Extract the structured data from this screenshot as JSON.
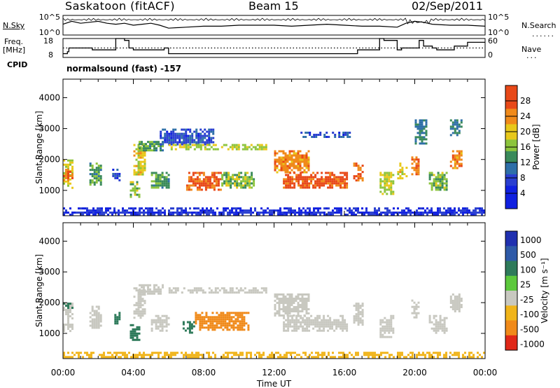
{
  "header": {
    "station": "Saskatoon (fitACF)",
    "beam": "Beam 15",
    "date": "02/Sep/2011"
  },
  "left_labels": {
    "nsky": "N.Sky",
    "freq_line1": "Freq.",
    "freq_line2": "[MHz]",
    "cpid": "CPID"
  },
  "right_labels": {
    "nsearch": "N.Search",
    "nave": "Nave"
  },
  "cpid_value": "normalsound (fast) -157",
  "chart_data": [
    {
      "type": "line",
      "title": "",
      "ylabel": "N.Sky",
      "y2label": "N.Search",
      "yticks": [
        "10^5",
        "10^0"
      ],
      "y2ticks": [
        "10^5",
        "10^0"
      ],
      "xlim": [
        "00:00",
        "00:00"
      ],
      "x": [
        "00:00",
        "00:30",
        "01:00",
        "01:30",
        "02:00",
        "02:30",
        "03:00",
        "03:30",
        "04:00",
        "04:30",
        "05:00",
        "05:30",
        "06:00",
        "07:00",
        "08:00",
        "09:00",
        "10:00",
        "11:00",
        "12:00",
        "13:00",
        "14:00",
        "15:00",
        "16:00",
        "17:00",
        "18:00",
        "19:00",
        "19:30",
        "20:00",
        "20:30",
        "21:00",
        "22:00",
        "23:00",
        "00:00"
      ],
      "series": [
        {
          "values": [
            0.55,
            0.7,
            0.6,
            0.65,
            0.7,
            0.6,
            0.55,
            0.6,
            0.5,
            0.55,
            0.6,
            0.5,
            0.35,
            0.4,
            0.45,
            0.45,
            0.5,
            0.5,
            0.5,
            0.45,
            0.5,
            0.55,
            0.5,
            0.45,
            0.45,
            0.4,
            0.6,
            0.7,
            0.65,
            0.55,
            0.5,
            0.5,
            0.45
          ]
        }
      ]
    },
    {
      "type": "line",
      "title": "",
      "ylabel": "Freq. [MHz]",
      "y2label": "Nave",
      "yticks": [
        "18",
        "8"
      ],
      "y2ticks": [
        "60",
        "0"
      ],
      "ylim": [
        8,
        18
      ],
      "y2lim": [
        0,
        60
      ],
      "x": [
        "00:00",
        "00:15",
        "00:20",
        "01:30",
        "01:40",
        "03:00",
        "03:20",
        "03:30",
        "03:45",
        "04:00",
        "05:30",
        "05:45",
        "06:00",
        "16:30",
        "16:45",
        "18:00",
        "18:15",
        "19:00",
        "19:15",
        "20:00",
        "20:15",
        "20:30",
        "21:00",
        "21:15",
        "22:00",
        "22:15",
        "23:00",
        "23:30",
        "00:00"
      ],
      "series": [
        {
          "name": "Freq.",
          "values": [
            10,
            11,
            13,
            13,
            12,
            18,
            18,
            17,
            13,
            12,
            12,
            13,
            10,
            10,
            12,
            18,
            17,
            12,
            13,
            13,
            17,
            14,
            13,
            12,
            12,
            14,
            16,
            16,
            16
          ]
        },
        {
          "name": "Nave",
          "style": "dotted",
          "values": [
            30,
            30,
            30,
            30,
            30,
            30,
            30,
            30,
            30,
            30,
            30,
            30,
            30,
            30,
            30,
            30,
            30,
            30,
            30,
            30,
            30,
            30,
            30,
            30,
            30,
            30,
            30,
            30,
            30
          ]
        }
      ]
    },
    {
      "type": "heatmap",
      "title": "",
      "xlabel": "",
      "ylabel": "Slant Range [km]",
      "ylim": [
        180,
        4600
      ],
      "yticks": [
        1000,
        2000,
        3000,
        4000
      ],
      "xlim": [
        0,
        24
      ],
      "colorbar": {
        "label": "Power [dB]",
        "ticks": [
          4,
          8,
          12,
          16,
          20,
          24,
          28
        ],
        "range": [
          0,
          32
        ]
      },
      "regions": [
        {
          "x": [
            0.0,
            0.5
          ],
          "y": [
            1100,
            2000
          ],
          "value": 18
        },
        {
          "x": [
            0.0,
            0.5
          ],
          "y": [
            1300,
            1700
          ],
          "value": 26
        },
        {
          "x": [
            1.5,
            2.2
          ],
          "y": [
            1200,
            1900
          ],
          "value": 14
        },
        {
          "x": [
            2.8,
            3.2
          ],
          "y": [
            1300,
            1700
          ],
          "value": 8
        },
        {
          "x": [
            4.0,
            4.7
          ],
          "y": [
            1500,
            2500
          ],
          "value": 20
        },
        {
          "x": [
            3.8,
            4.3
          ],
          "y": [
            800,
            1300
          ],
          "value": 16
        },
        {
          "x": [
            4.3,
            5.7
          ],
          "y": [
            2300,
            2600
          ],
          "value": 14
        },
        {
          "x": [
            5.0,
            6.0
          ],
          "y": [
            1100,
            1600
          ],
          "value": 14
        },
        {
          "x": [
            5.5,
            8.5
          ],
          "y": [
            2500,
            3000
          ],
          "value": 8
        },
        {
          "x": [
            6.0,
            11.5
          ],
          "y": [
            2300,
            2500
          ],
          "value": 18
        },
        {
          "x": [
            7.0,
            9.0
          ],
          "y": [
            1050,
            1600
          ],
          "value": 27
        },
        {
          "x": [
            9.0,
            10.8
          ],
          "y": [
            1100,
            1600
          ],
          "value": 16
        },
        {
          "x": [
            12.0,
            14.0
          ],
          "y": [
            1600,
            2300
          ],
          "value": 24
        },
        {
          "x": [
            12.5,
            16.2
          ],
          "y": [
            1100,
            1600
          ],
          "value": 28
        },
        {
          "x": [
            13.5,
            16.3
          ],
          "y": [
            2700,
            2900
          ],
          "value": 8
        },
        {
          "x": [
            16.5,
            17.0
          ],
          "y": [
            1300,
            1900
          ],
          "value": 26
        },
        {
          "x": [
            18.0,
            18.8
          ],
          "y": [
            900,
            1600
          ],
          "value": 18
        },
        {
          "x": [
            19.0,
            19.5
          ],
          "y": [
            1400,
            1900
          ],
          "value": 20
        },
        {
          "x": [
            19.8,
            20.2
          ],
          "y": [
            1500,
            2100
          ],
          "value": 26
        },
        {
          "x": [
            20.0,
            20.6
          ],
          "y": [
            2500,
            3300
          ],
          "value": 12
        },
        {
          "x": [
            20.8,
            21.8
          ],
          "y": [
            1000,
            1600
          ],
          "value": 16
        },
        {
          "x": [
            22.0,
            22.7
          ],
          "y": [
            1700,
            2300
          ],
          "value": 24
        },
        {
          "x": [
            22.0,
            22.7
          ],
          "y": [
            2800,
            3300
          ],
          "value": 12
        },
        {
          "x": [
            0.0,
            24.0
          ],
          "y": [
            200,
            450
          ],
          "value": 6
        }
      ]
    },
    {
      "type": "heatmap",
      "title": "",
      "xlabel": "Time UT",
      "ylabel": "Slant Range [km]",
      "ylim": [
        180,
        4600
      ],
      "yticks": [
        1000,
        2000,
        3000,
        4000
      ],
      "xlim": [
        0,
        24
      ],
      "xticks": [
        "00:00",
        "04:00",
        "08:00",
        "12:00",
        "16:00",
        "20:00",
        "00:00"
      ],
      "colorbar": {
        "label": "Velocity [m s^-1]",
        "ticks": [
          "1000",
          "500",
          "100",
          "25",
          "-25",
          "-100",
          "-500",
          "-1000"
        ],
        "range": [
          -1000,
          1000
        ]
      },
      "regions": [
        {
          "x": [
            0.0,
            0.5
          ],
          "y": [
            1100,
            2000
          ],
          "value": 0
        },
        {
          "x": [
            0.0,
            0.5
          ],
          "y": [
            1800,
            2000
          ],
          "value": 150
        },
        {
          "x": [
            1.5,
            2.2
          ],
          "y": [
            1200,
            1900
          ],
          "value": 0
        },
        {
          "x": [
            2.8,
            3.2
          ],
          "y": [
            1300,
            1700
          ],
          "value": 200
        },
        {
          "x": [
            4.0,
            4.7
          ],
          "y": [
            1500,
            2500
          ],
          "value": 0
        },
        {
          "x": [
            3.8,
            4.3
          ],
          "y": [
            800,
            1300
          ],
          "value": 200
        },
        {
          "x": [
            4.3,
            5.7
          ],
          "y": [
            2300,
            2600
          ],
          "value": 0
        },
        {
          "x": [
            5.0,
            6.0
          ],
          "y": [
            1100,
            1600
          ],
          "value": 0
        },
        {
          "x": [
            6.0,
            11.5
          ],
          "y": [
            2300,
            2500
          ],
          "value": 0
        },
        {
          "x": [
            6.8,
            7.5
          ],
          "y": [
            1050,
            1400
          ],
          "value": 150
        },
        {
          "x": [
            7.5,
            10.5
          ],
          "y": [
            1100,
            1700
          ],
          "value": -250
        },
        {
          "x": [
            12.0,
            14.0
          ],
          "y": [
            1600,
            2300
          ],
          "value": 0
        },
        {
          "x": [
            12.5,
            16.2
          ],
          "y": [
            1100,
            1600
          ],
          "value": 0
        },
        {
          "x": [
            16.5,
            17.0
          ],
          "y": [
            1300,
            2000
          ],
          "value": 0
        },
        {
          "x": [
            18.0,
            18.8
          ],
          "y": [
            900,
            1600
          ],
          "value": 0
        },
        {
          "x": [
            19.8,
            20.2
          ],
          "y": [
            1500,
            2100
          ],
          "value": 0
        },
        {
          "x": [
            20.8,
            21.8
          ],
          "y": [
            1000,
            1600
          ],
          "value": 0
        },
        {
          "x": [
            22.0,
            22.7
          ],
          "y": [
            1700,
            2300
          ],
          "value": 0
        },
        {
          "x": [
            0.0,
            24.0
          ],
          "y": [
            200,
            400
          ],
          "value": -60
        }
      ]
    }
  ]
}
